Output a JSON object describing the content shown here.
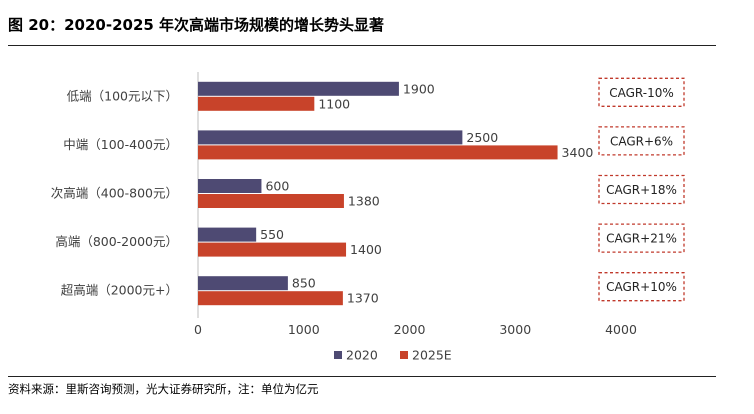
{
  "figure": {
    "title": "图 20：2020-2025 年次高端市场规模的增长势头显著",
    "source": "资料来源：里斯咨询预测，光大证券研究所，注：单位为亿元"
  },
  "chart_data": {
    "type": "bar",
    "orientation": "horizontal",
    "categories": [
      "低端（100元以下）",
      "中端（100-400元）",
      "次高端（400-800元）",
      "高端（800-2000元）",
      "超高端（2000元+）"
    ],
    "series": [
      {
        "name": "2020",
        "values": [
          1900,
          2500,
          600,
          550,
          850
        ],
        "color": "#4e4a73"
      },
      {
        "name": "2025E",
        "values": [
          1100,
          3400,
          1380,
          1400,
          1370
        ],
        "color": "#c8432a"
      }
    ],
    "annotations": [
      "CAGR-10%",
      "CAGR+6%",
      "CAGR+18%",
      "CAGR+21%",
      "CAGR+10%"
    ],
    "annotation_color": "#c0392b",
    "xlim": [
      0,
      4000
    ],
    "xticks": [
      "0",
      "1000",
      "2000",
      "3000",
      "4000"
    ],
    "grid": false,
    "legend_position": "bottom"
  }
}
